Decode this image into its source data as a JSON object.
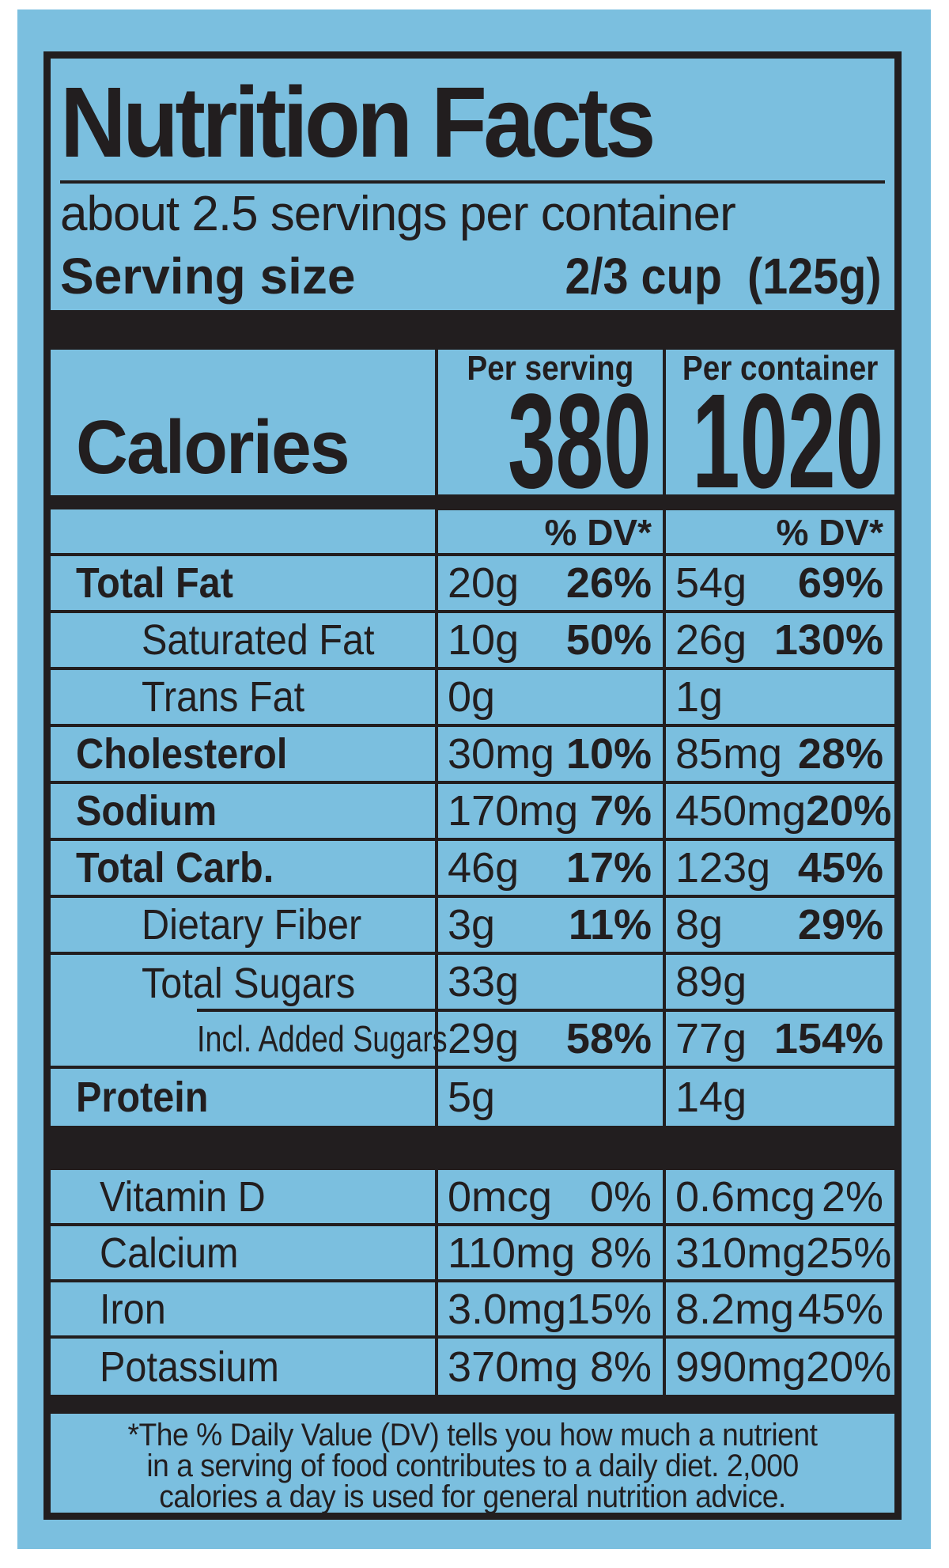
{
  "label": {
    "title": "Nutrition Facts",
    "servings_line": "about 2.5 servings per container",
    "serving_size": {
      "label": "Serving size",
      "value": "2/3 cup  (125g)"
    },
    "columns": {
      "per_serving": "Per serving",
      "per_container": "Per container"
    },
    "calories": {
      "label": "Calories",
      "per_serving": "380",
      "per_container": "1020"
    },
    "dv_header": "% DV*",
    "rows": [
      {
        "name": "Total Fat",
        "ps_amt": "20g",
        "ps_dv": "26%",
        "pc_amt": "54g",
        "pc_dv": "69%"
      },
      {
        "name": "Saturated Fat",
        "ps_amt": "10g",
        "ps_dv": "50%",
        "pc_amt": "26g",
        "pc_dv": "130%"
      },
      {
        "name": "Trans Fat",
        "ps_amt": "0g",
        "ps_dv": "",
        "pc_amt": "1g",
        "pc_dv": ""
      },
      {
        "name": "Cholesterol",
        "ps_amt": "30mg",
        "ps_dv": "10%",
        "pc_amt": "85mg",
        "pc_dv": "28%"
      },
      {
        "name": "Sodium",
        "ps_amt": "170mg",
        "ps_dv": "7%",
        "pc_amt": "450mg",
        "pc_dv": "20%"
      },
      {
        "name": "Total Carb.",
        "ps_amt": "46g",
        "ps_dv": "17%",
        "pc_amt": "123g",
        "pc_dv": "45%"
      },
      {
        "name": "Dietary Fiber",
        "ps_amt": "3g",
        "ps_dv": "11%",
        "pc_amt": "8g",
        "pc_dv": "29%"
      },
      {
        "name": "Total Sugars",
        "ps_amt": "33g",
        "ps_dv": "",
        "pc_amt": "89g",
        "pc_dv": ""
      },
      {
        "name": "Incl. Added Sugars",
        "ps_amt": "29g",
        "ps_dv": "58%",
        "pc_amt": "77g",
        "pc_dv": "154%"
      },
      {
        "name": "Protein",
        "ps_amt": "5g",
        "ps_dv": "",
        "pc_amt": "14g",
        "pc_dv": ""
      }
    ],
    "micros": [
      {
        "name": "Vitamin D",
        "ps_amt": "0mcg",
        "ps_dv": "0%",
        "pc_amt": "0.6mcg",
        "pc_dv": "2%"
      },
      {
        "name": "Calcium",
        "ps_amt": "110mg",
        "ps_dv": "8%",
        "pc_amt": "310mg",
        "pc_dv": "25%"
      },
      {
        "name": "Iron",
        "ps_amt": "3.0mg",
        "ps_dv": "15%",
        "pc_amt": "8.2mg",
        "pc_dv": "45%"
      },
      {
        "name": "Potassium",
        "ps_amt": "370mg",
        "ps_dv": "8%",
        "pc_amt": "990mg",
        "pc_dv": "20%"
      }
    ],
    "footnote": {
      "line1": "*The % Daily Value (DV) tells you how much a nutrient",
      "line2": "in a serving of food contributes to a daily diet. 2,000",
      "line3": "calories a day is used for general nutrition advice."
    },
    "colors": {
      "background_blue": "#7bbfdf",
      "ink_black": "#221e1f"
    }
  }
}
